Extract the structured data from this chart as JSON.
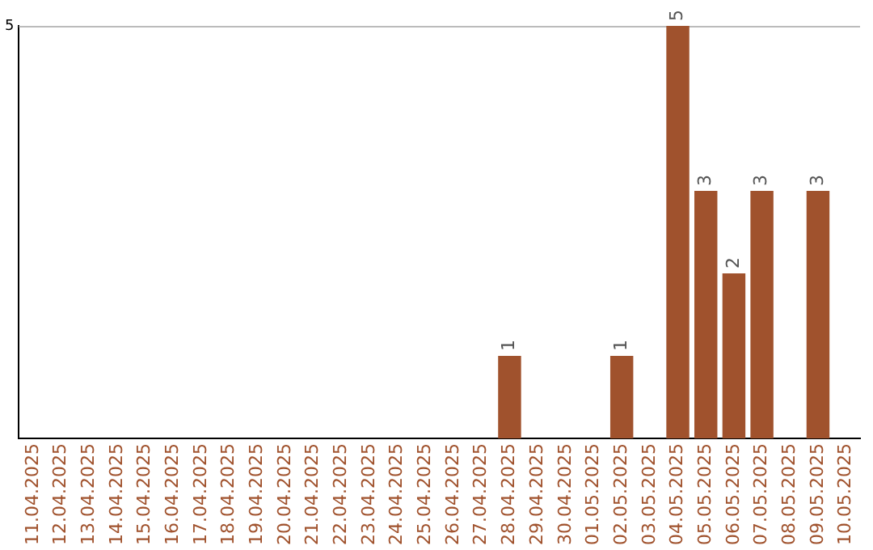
{
  "chart_data": {
    "type": "bar",
    "categories": [
      "11.04.2025",
      "12.04.2025",
      "13.04.2025",
      "14.04.2025",
      "15.04.2025",
      "16.04.2025",
      "17.04.2025",
      "18.04.2025",
      "19.04.2025",
      "20.04.2025",
      "21.04.2025",
      "22.04.2025",
      "23.04.2025",
      "24.04.2025",
      "25.04.2025",
      "26.04.2025",
      "27.04.2025",
      "28.04.2025",
      "29.04.2025",
      "30.04.2025",
      "01.05.2025",
      "02.05.2025",
      "03.05.2025",
      "04.05.2025",
      "05.05.2025",
      "06.05.2025",
      "07.05.2025",
      "08.05.2025",
      "09.05.2025",
      "10.05.2025"
    ],
    "values": [
      null,
      null,
      null,
      null,
      null,
      null,
      null,
      null,
      null,
      null,
      null,
      null,
      null,
      null,
      null,
      null,
      null,
      1,
      null,
      null,
      null,
      1,
      null,
      5,
      3,
      2,
      3,
      null,
      3,
      null
    ],
    "color": "#a0522d",
    "ylim": [
      0,
      5
    ],
    "yticks": [
      5
    ],
    "data_labels": true,
    "legend": false
  }
}
